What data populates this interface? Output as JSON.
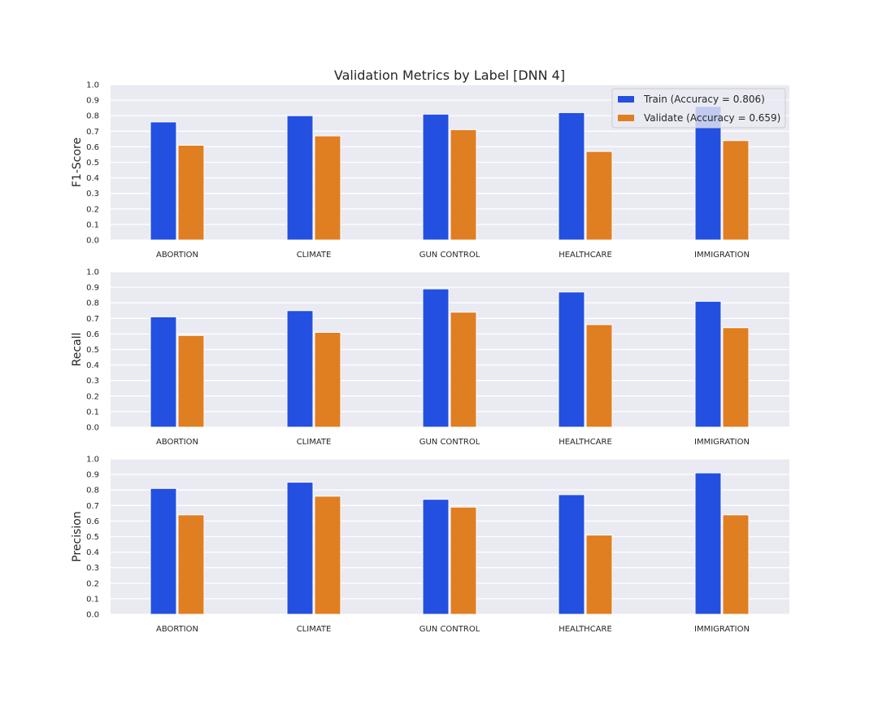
{
  "chart_data": {
    "type": "bar",
    "title": "Validation Metrics by Label [DNN 4]",
    "categories": [
      "ABORTION",
      "CLIMATE",
      "GUN CONTROL",
      "HEALTHCARE",
      "IMMIGRATION"
    ],
    "yticks": [
      "0.0",
      "0.1",
      "0.2",
      "0.3",
      "0.4",
      "0.5",
      "0.6",
      "0.7",
      "0.8",
      "0.9",
      "1.0"
    ],
    "ylim": [
      0,
      1.0
    ],
    "grid": true,
    "legend_position": "top-right",
    "legend": [
      {
        "label": "Train (Accuracy = 0.806)",
        "color": "#2350e0"
      },
      {
        "label": "Validate (Accuracy = 0.659)",
        "color": "#e07e22"
      }
    ],
    "colors": {
      "train": "#2350e0",
      "validate": "#e07e22",
      "background": "#eaeaf2",
      "grid": "#ffffff"
    },
    "panels": [
      {
        "ylabel": "F1-Score",
        "series": [
          {
            "values": [
              0.76,
              0.8,
              0.81,
              0.82,
              0.86
            ]
          },
          {
            "values": [
              0.61,
              0.67,
              0.71,
              0.57,
              0.64
            ]
          }
        ]
      },
      {
        "ylabel": "Recall",
        "series": [
          {
            "values": [
              0.71,
              0.75,
              0.89,
              0.87,
              0.81
            ]
          },
          {
            "values": [
              0.59,
              0.61,
              0.74,
              0.66,
              0.64
            ]
          }
        ]
      },
      {
        "ylabel": "Precision",
        "series": [
          {
            "values": [
              0.81,
              0.85,
              0.74,
              0.77,
              0.91
            ]
          },
          {
            "values": [
              0.64,
              0.76,
              0.69,
              0.51,
              0.64
            ]
          }
        ]
      }
    ]
  }
}
